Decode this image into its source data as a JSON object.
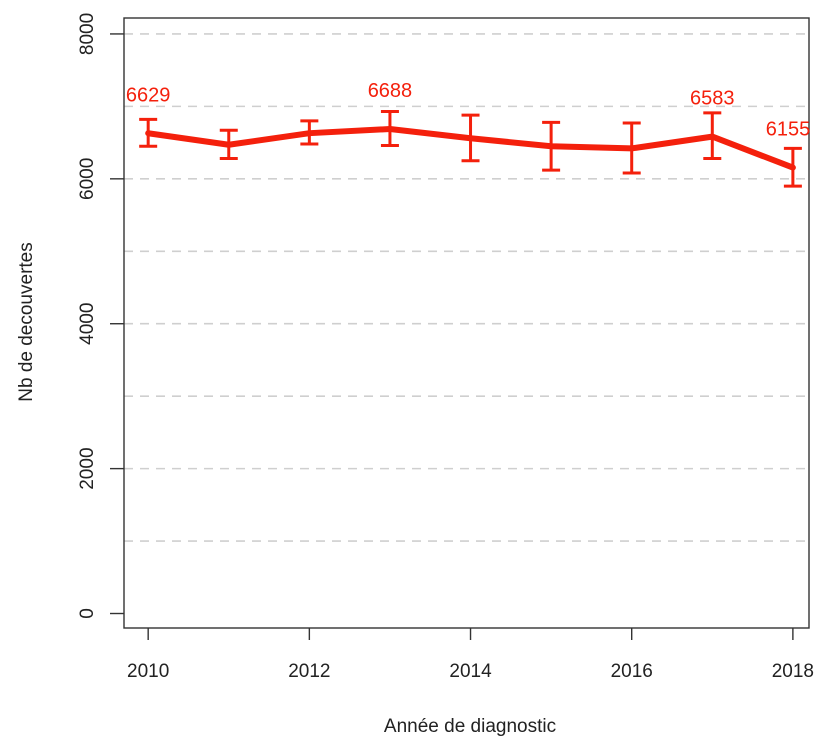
{
  "chart_data": {
    "type": "line",
    "title": "",
    "xlabel": "Année de diagnostic",
    "ylabel": "Nb de decouvertes",
    "x": [
      2010,
      2011,
      2012,
      2013,
      2014,
      2015,
      2016,
      2017,
      2018
    ],
    "xlim": [
      2009.7,
      2018.2
    ],
    "ylim": [
      -200,
      8220
    ],
    "x_ticks": [
      2010,
      2012,
      2014,
      2016,
      2018
    ],
    "y_ticks": [
      0,
      2000,
      4000,
      6000,
      8000
    ],
    "x_tick_labels": [
      "2010",
      "2012",
      "2014",
      "2016",
      "2018"
    ],
    "y_tick_labels": [
      "0",
      "2000",
      "4000",
      "6000",
      "8000"
    ],
    "y_gridlines": [
      1000,
      2000,
      3000,
      4000,
      5000,
      6000,
      7000,
      8000
    ],
    "grid": "horizontal dashed",
    "series": [
      {
        "values": [
          6629,
          6470,
          6630,
          6688,
          6560,
          6450,
          6420,
          6583,
          6155
        ],
        "lower": [
          6450,
          6280,
          6480,
          6460,
          6250,
          6120,
          6080,
          6280,
          5900
        ],
        "upper": [
          6820,
          6670,
          6800,
          6930,
          6880,
          6780,
          6770,
          6910,
          6420
        ],
        "color": "#f4200c"
      }
    ],
    "data_labels": [
      {
        "x": 2010,
        "text": "6629"
      },
      {
        "x": 2013,
        "text": "6688"
      },
      {
        "x": 2017,
        "text": "6583"
      },
      {
        "x": 2018,
        "text": "6155"
      }
    ]
  }
}
